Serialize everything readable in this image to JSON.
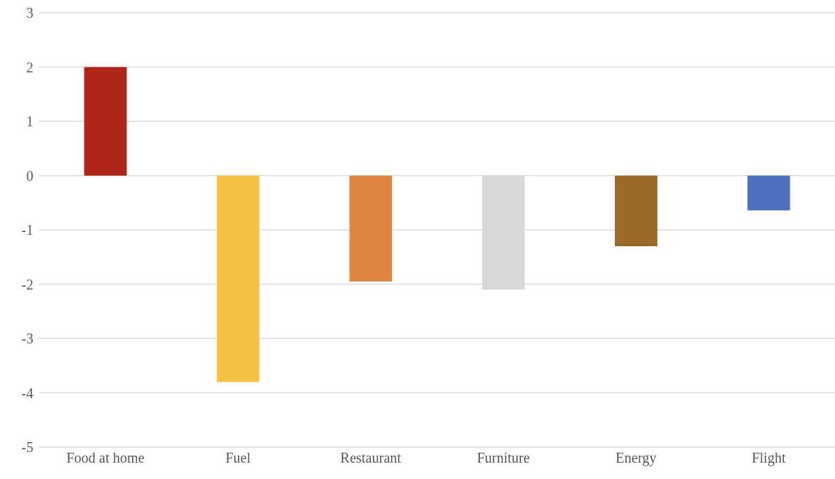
{
  "chart_data": {
    "type": "bar",
    "categories": [
      "Food at home",
      "Fuel",
      "Restaurant",
      "Furniture",
      "Energy",
      "Flight"
    ],
    "values": [
      2.0,
      -3.8,
      -1.95,
      -2.1,
      -1.3,
      -0.64
    ],
    "colors": [
      "#b0251a",
      "#f4c242",
      "#df8443",
      "#d9d9d9",
      "#9a6a2c",
      "#4f71be"
    ],
    "ylim": [
      -5,
      3
    ],
    "yticks": [
      -5,
      -4,
      -3,
      -2,
      -1,
      0,
      1,
      2,
      3
    ],
    "grid": "y"
  }
}
